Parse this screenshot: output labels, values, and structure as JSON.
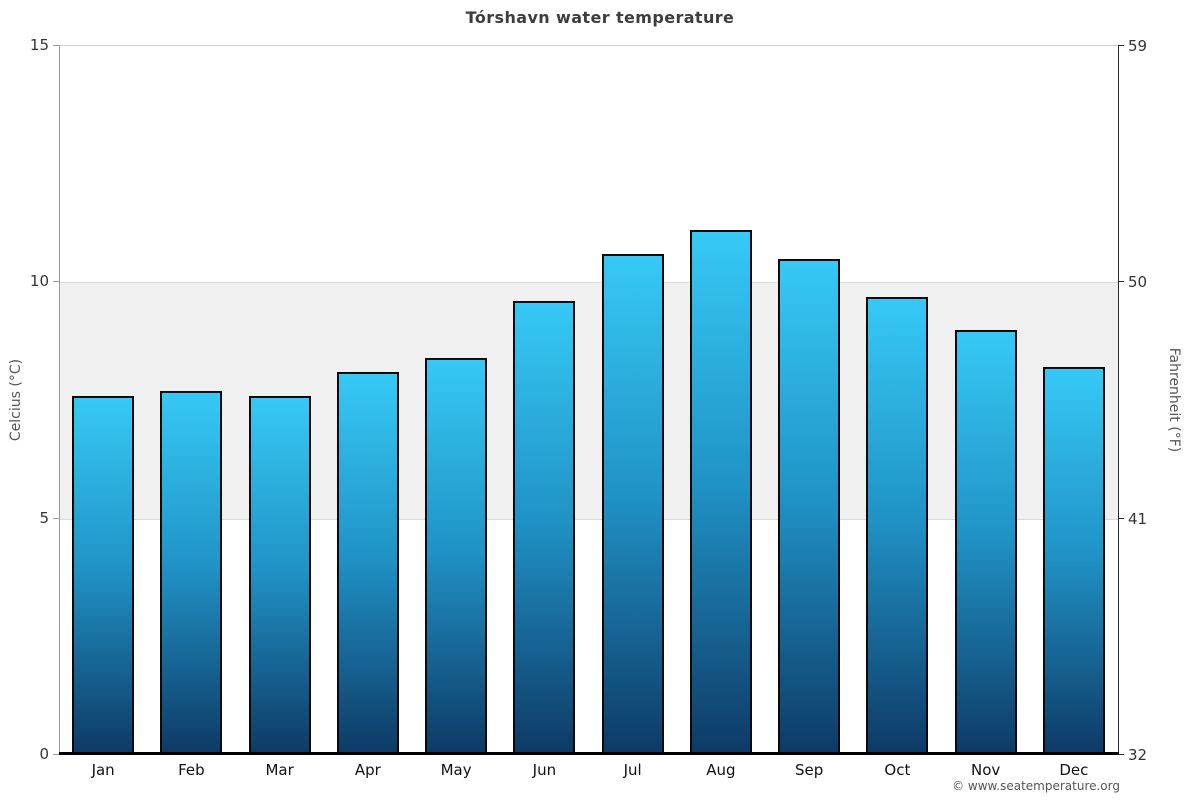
{
  "chart_data": {
    "type": "bar",
    "title": "Tórshavn water temperature",
    "categories": [
      "Jan",
      "Feb",
      "Mar",
      "Apr",
      "May",
      "Jun",
      "Jul",
      "Aug",
      "Sep",
      "Oct",
      "Nov",
      "Dec"
    ],
    "values": [
      7.6,
      7.7,
      7.6,
      8.1,
      8.4,
      9.6,
      10.6,
      11.1,
      10.5,
      9.7,
      9.0,
      8.2
    ],
    "xlabel": "",
    "ylabel_left": "Celcius (°C)",
    "ylabel_right": "Fahrenheit (°F)",
    "ylim": [
      0,
      15
    ],
    "yticks_celsius": [
      0,
      5,
      10,
      15
    ],
    "yticks_fahrenheit": [
      32,
      41,
      50,
      59
    ],
    "gridlines_at": [
      5,
      10
    ],
    "shaded_band": {
      "from": 5,
      "to": 10,
      "color": "#f0f0f0"
    },
    "legend": "none",
    "colors": {
      "bar_gradient_top": "#36c9f6",
      "bar_gradient_mid": "#2093c6",
      "bar_gradient_bottom": "#0e3a66",
      "bar_border": "#0a0a0a",
      "band": "#f0f0f0",
      "grid": "#d9d9d9"
    }
  },
  "footer": {
    "credit": "© www.seatemperature.org"
  }
}
